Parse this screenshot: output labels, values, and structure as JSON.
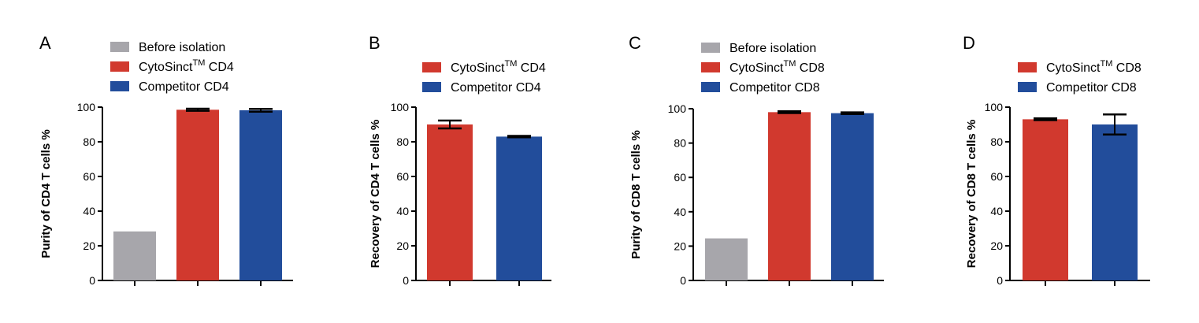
{
  "chart_data": [
    {
      "type": "bar",
      "panel": "A",
      "ylabel": "Purity of CD4 T cells %",
      "ylim": [
        0,
        100
      ],
      "yticks": [
        0,
        20,
        40,
        60,
        80,
        100
      ],
      "categories": [
        "Before isolation",
        "CytoSinct™ CD4",
        "Competitor CD4"
      ],
      "values": [
        28.3,
        98.5,
        98.2
      ],
      "errors": [
        0,
        0.6,
        0.8
      ],
      "colors": [
        "#a7a6ab",
        "#d1392e",
        "#224d9b"
      ],
      "legend": [
        {
          "name": "Before isolation",
          "sup": ""
        },
        {
          "name": "CytoSinct",
          "sup": "TM",
          "suffix": " CD4"
        },
        {
          "name": "Competitor CD4",
          "sup": ""
        }
      ],
      "legend_position": "top"
    },
    {
      "type": "bar",
      "panel": "B",
      "ylabel": "Recovery of CD4 T cells %",
      "ylim": [
        0,
        100
      ],
      "yticks": [
        0,
        20,
        40,
        60,
        80,
        100
      ],
      "categories": [
        "CytoSinct™ CD4",
        "Competitor CD4"
      ],
      "values": [
        90.0,
        83.0
      ],
      "errors": [
        2.3,
        0.4
      ],
      "colors": [
        "#d1392e",
        "#224d9b"
      ],
      "legend": [
        {
          "name": "CytoSinct",
          "sup": "TM",
          "suffix": " CD4"
        },
        {
          "name": "Competitor CD4",
          "sup": ""
        }
      ],
      "legend_position": "top"
    },
    {
      "type": "bar",
      "panel": "C",
      "ylabel": "Purity of CD8 T cells %",
      "ylim": [
        0,
        100
      ],
      "yticks": [
        0,
        20,
        40,
        60,
        80,
        100
      ],
      "categories": [
        "Before isolation",
        "CytoSinct™ CD8",
        "Competitor CD8"
      ],
      "values": [
        24.5,
        98.0,
        97.4
      ],
      "errors": [
        0,
        0.5,
        0.5
      ],
      "colors": [
        "#a7a6ab",
        "#d1392e",
        "#224d9b"
      ],
      "legend": [
        {
          "name": "Before isolation",
          "sup": ""
        },
        {
          "name": "CytoSinct",
          "sup": "TM",
          "suffix": " CD8"
        },
        {
          "name": "Competitor CD8",
          "sup": ""
        }
      ],
      "legend_position": "top"
    },
    {
      "type": "bar",
      "panel": "D",
      "ylabel": "Recovery of CD8 T cells %",
      "ylim": [
        0,
        100
      ],
      "yticks": [
        0,
        20,
        40,
        60,
        80,
        100
      ],
      "categories": [
        "CytoSinct™ CD8",
        "Competitor CD8"
      ],
      "values": [
        93.0,
        90.0
      ],
      "errors": [
        0.5,
        5.8
      ],
      "colors": [
        "#d1392e",
        "#224d9b"
      ],
      "legend": [
        {
          "name": "CytoSinct",
          "sup": "TM",
          "suffix": " CD8"
        },
        {
          "name": "Competitor CD8",
          "sup": ""
        }
      ],
      "legend_position": "top"
    }
  ]
}
